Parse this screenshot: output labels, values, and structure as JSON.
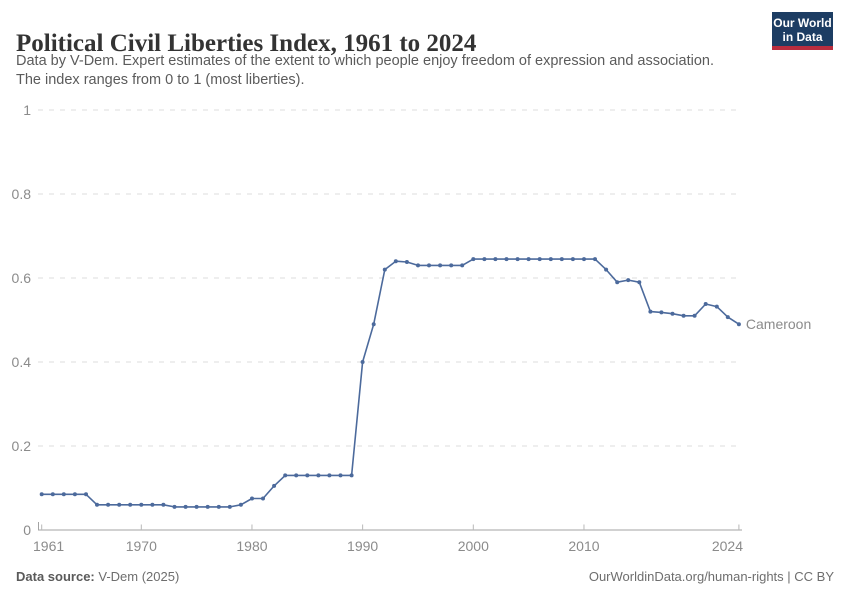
{
  "header": {
    "title": "Political Civil Liberties Index, 1961 to 2024",
    "subtitle_line1": "Data by V-Dem. Expert estimates of the extent to which people enjoy freedom of expression and association.",
    "subtitle_line2": "The index ranges from 0 to 1 (most liberties).",
    "logo": {
      "line1": "Our World",
      "line2": "in Data",
      "bg_color": "#1d3d63",
      "stripe_color": "#b92d3e"
    }
  },
  "chart_data": {
    "type": "line",
    "title": "Political Civil Liberties Index, 1961 to 2024",
    "xlabel": "",
    "ylabel": "",
    "ylim": [
      0,
      1
    ],
    "yticks": [
      0,
      0.2,
      0.4,
      0.6,
      0.8,
      1
    ],
    "xticks": [
      1961,
      1970,
      1980,
      1990,
      2000,
      2010,
      2024
    ],
    "grid": "horizontal-dashed",
    "grid_color": "#dcdcdc",
    "axis_color": "#a3a3a3",
    "tick_label_color": "#8b8b8b",
    "legend_position": "end-of-line-label",
    "series": [
      {
        "name": "Cameroon",
        "color": "#4c6a9c",
        "x": [
          1961,
          1962,
          1963,
          1964,
          1965,
          1966,
          1967,
          1968,
          1969,
          1970,
          1971,
          1972,
          1973,
          1974,
          1975,
          1976,
          1977,
          1978,
          1979,
          1980,
          1981,
          1982,
          1983,
          1984,
          1985,
          1986,
          1987,
          1988,
          1989,
          1990,
          1991,
          1992,
          1993,
          1994,
          1995,
          1996,
          1997,
          1998,
          1999,
          2000,
          2001,
          2002,
          2003,
          2004,
          2005,
          2006,
          2007,
          2008,
          2009,
          2010,
          2011,
          2012,
          2013,
          2014,
          2015,
          2016,
          2017,
          2018,
          2019,
          2020,
          2021,
          2022,
          2023,
          2024
        ],
        "values": [
          0.085,
          0.085,
          0.085,
          0.085,
          0.085,
          0.06,
          0.06,
          0.06,
          0.06,
          0.06,
          0.06,
          0.06,
          0.055,
          0.055,
          0.055,
          0.055,
          0.055,
          0.055,
          0.06,
          0.075,
          0.075,
          0.105,
          0.13,
          0.13,
          0.13,
          0.13,
          0.13,
          0.13,
          0.13,
          0.4,
          0.49,
          0.62,
          0.64,
          0.638,
          0.63,
          0.63,
          0.63,
          0.63,
          0.63,
          0.645,
          0.645,
          0.645,
          0.645,
          0.645,
          0.645,
          0.645,
          0.645,
          0.645,
          0.645,
          0.645,
          0.645,
          0.62,
          0.59,
          0.595,
          0.59,
          0.52,
          0.518,
          0.515,
          0.51,
          0.51,
          0.538,
          0.532,
          0.507,
          0.49
        ]
      }
    ]
  },
  "footer": {
    "source_label": "Data source:",
    "source_value": " V-Dem (2025)",
    "attribution": "OurWorldinData.org/human-rights | CC BY"
  }
}
